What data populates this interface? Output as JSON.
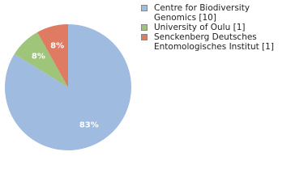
{
  "chart_data": {
    "type": "pie",
    "categories": [
      "Centre for Biodiversity Genomics [10]",
      "University of Oulu [1]",
      "Senckenberg Deutsches Entomologisches Institut [1]"
    ],
    "values": [
      83,
      8,
      8
    ],
    "value_labels": [
      "83%",
      "8%",
      "8%"
    ],
    "colors": [
      "#9fbbe0",
      "#9ec57a",
      "#e07b63"
    ],
    "legend": "right"
  }
}
